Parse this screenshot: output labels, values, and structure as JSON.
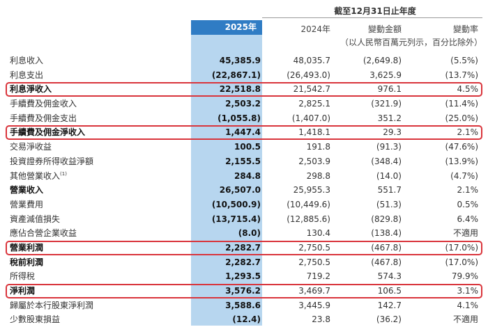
{
  "header": {
    "period": "截至12月31日止年度",
    "col_2025": "2025年",
    "col_2024": "2024年",
    "col_change_amount": "變動金額",
    "col_change_rate": "變動率",
    "unit_note": "（以人民幣百萬元列示，百分比除外）"
  },
  "colors": {
    "highlight_border": "#d9343b",
    "column_fill": "#b7d6ef",
    "header_fill": "#2f7cc4"
  },
  "rows": [
    {
      "label": "利息收入",
      "bold": false,
      "highlight": false,
      "y2025": "45,385.9",
      "y2024": "48,035.7",
      "change": "(2,649.8)",
      "rate": "(5.5%)"
    },
    {
      "label": "利息支出",
      "bold": false,
      "highlight": false,
      "y2025": "(22,867.1)",
      "y2024": "(26,493.0)",
      "change": "3,625.9",
      "rate": "(13.7%)"
    },
    {
      "label": "利息淨收入",
      "bold": true,
      "highlight": true,
      "y2025": "22,518.8",
      "y2024": "21,542.7",
      "change": "976.1",
      "rate": "4.5%"
    },
    {
      "label": "手續費及佣金收入",
      "bold": false,
      "highlight": false,
      "y2025": "2,503.2",
      "y2024": "2,825.1",
      "change": "(321.9)",
      "rate": "(11.4%)"
    },
    {
      "label": "手續費及佣金支出",
      "bold": false,
      "highlight": false,
      "y2025": "(1,055.8)",
      "y2024": "(1,407.0)",
      "change": "351.2",
      "rate": "(25.0%)"
    },
    {
      "label": "手續費及佣金淨收入",
      "bold": true,
      "highlight": true,
      "y2025": "1,447.4",
      "y2024": "1,418.1",
      "change": "29.3",
      "rate": "2.1%"
    },
    {
      "label": "交易淨收益",
      "bold": false,
      "highlight": false,
      "y2025": "100.5",
      "y2024": "191.8",
      "change": "(91.3)",
      "rate": "(47.6%)"
    },
    {
      "label": "投資證券所得收益淨額",
      "bold": false,
      "highlight": false,
      "y2025": "2,155.5",
      "y2024": "2,503.9",
      "change": "(348.4)",
      "rate": "(13.9%)"
    },
    {
      "label": "其他營業收入",
      "note": "(1)",
      "bold": false,
      "highlight": false,
      "y2025": "284.8",
      "y2024": "298.8",
      "change": "(14.0)",
      "rate": "(4.7%)"
    },
    {
      "label": "營業收入",
      "bold": true,
      "highlight": false,
      "y2025": "26,507.0",
      "y2024": "25,955.3",
      "change": "551.7",
      "rate": "2.1%"
    },
    {
      "label": "營業費用",
      "bold": false,
      "highlight": false,
      "y2025": "(10,500.9)",
      "y2024": "(10,449.6)",
      "change": "(51.3)",
      "rate": "0.5%"
    },
    {
      "label": "資產減值損失",
      "bold": false,
      "highlight": false,
      "y2025": "(13,715.4)",
      "y2024": "(12,885.6)",
      "change": "(829.8)",
      "rate": "6.4%"
    },
    {
      "label": "應佔合營企業收益",
      "bold": false,
      "highlight": false,
      "y2025": "(8.0)",
      "y2024": "130.4",
      "change": "(138.4)",
      "rate": "不適用"
    },
    {
      "label": "營業利潤",
      "bold": true,
      "highlight": true,
      "y2025": "2,282.7",
      "y2024": "2,750.5",
      "change": "(467.8)",
      "rate": "(17.0%)"
    },
    {
      "label": "稅前利潤",
      "bold": true,
      "highlight": false,
      "y2025": "2,282.7",
      "y2024": "2,750.5",
      "change": "(467.8)",
      "rate": "(17.0%)"
    },
    {
      "label": "所得稅",
      "bold": false,
      "highlight": false,
      "y2025": "1,293.5",
      "y2024": "719.2",
      "change": "574.3",
      "rate": "79.9%"
    },
    {
      "label": "淨利潤",
      "bold": true,
      "highlight": true,
      "y2025": "3,576.2",
      "y2024": "3,469.7",
      "change": "106.5",
      "rate": "3.1%"
    },
    {
      "label": "歸屬於本行股東淨利潤",
      "bold": false,
      "highlight": false,
      "y2025": "3,588.6",
      "y2024": "3,445.9",
      "change": "142.7",
      "rate": "4.1%"
    },
    {
      "label": "少數股東損益",
      "bold": false,
      "highlight": false,
      "y2025": "(12.4)",
      "y2024": "23.8",
      "change": "(36.2)",
      "rate": "不適用"
    }
  ]
}
